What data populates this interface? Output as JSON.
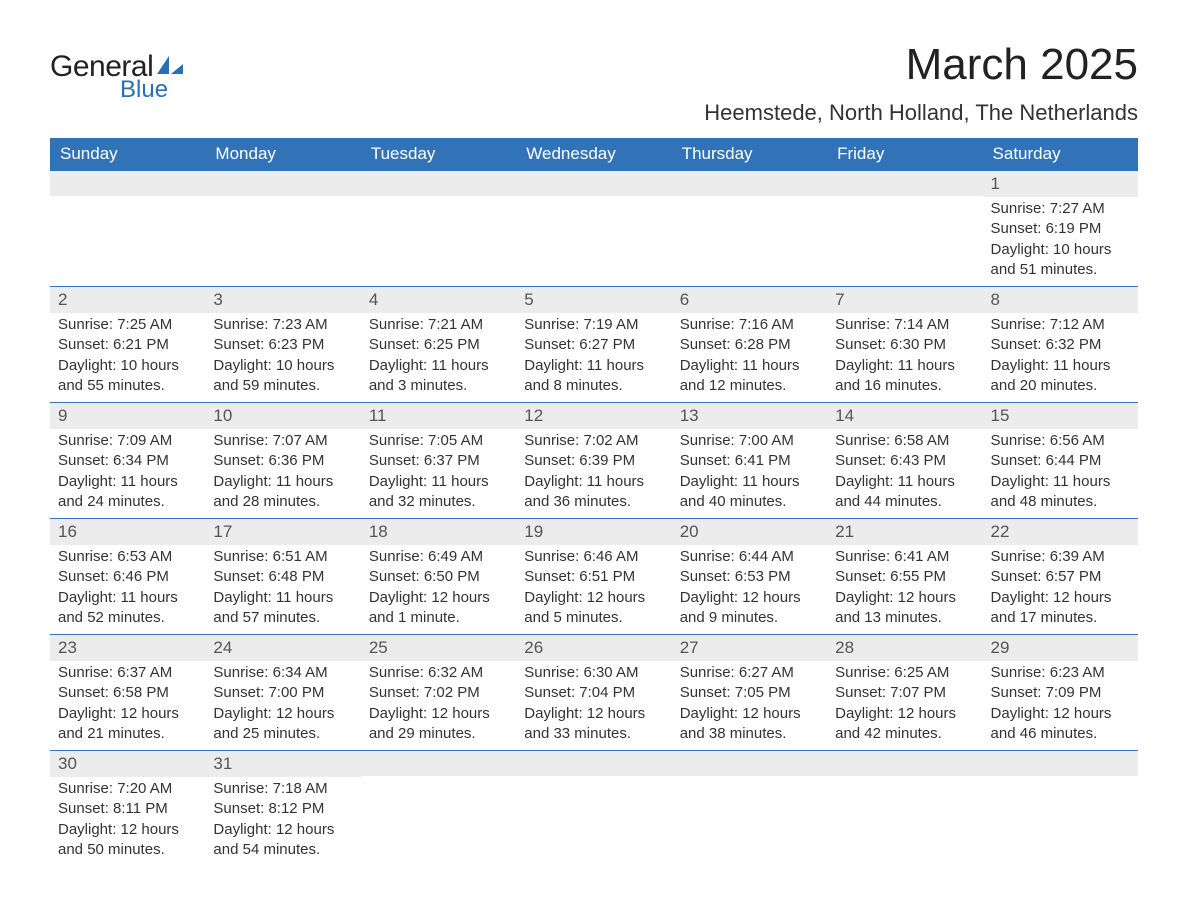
{
  "logo": {
    "word1": "General",
    "word2": "Blue",
    "sail_color": "#2a6fb5",
    "text_color": "#222222"
  },
  "title": "March 2025",
  "location": "Heemstede, North Holland, The Netherlands",
  "colors": {
    "header_bg": "#3173b6",
    "header_text": "#ffffff",
    "daynum_bg": "#ececec",
    "row_divider": "#3173b6",
    "body_text": "#333333"
  },
  "days_of_week": [
    "Sunday",
    "Monday",
    "Tuesday",
    "Wednesday",
    "Thursday",
    "Friday",
    "Saturday"
  ],
  "weeks": [
    [
      null,
      null,
      null,
      null,
      null,
      null,
      {
        "n": "1",
        "sunrise": "Sunrise: 7:27 AM",
        "sunset": "Sunset: 6:19 PM",
        "daylight": "Daylight: 10 hours and 51 minutes."
      }
    ],
    [
      {
        "n": "2",
        "sunrise": "Sunrise: 7:25 AM",
        "sunset": "Sunset: 6:21 PM",
        "daylight": "Daylight: 10 hours and 55 minutes."
      },
      {
        "n": "3",
        "sunrise": "Sunrise: 7:23 AM",
        "sunset": "Sunset: 6:23 PM",
        "daylight": "Daylight: 10 hours and 59 minutes."
      },
      {
        "n": "4",
        "sunrise": "Sunrise: 7:21 AM",
        "sunset": "Sunset: 6:25 PM",
        "daylight": "Daylight: 11 hours and 3 minutes."
      },
      {
        "n": "5",
        "sunrise": "Sunrise: 7:19 AM",
        "sunset": "Sunset: 6:27 PM",
        "daylight": "Daylight: 11 hours and 8 minutes."
      },
      {
        "n": "6",
        "sunrise": "Sunrise: 7:16 AM",
        "sunset": "Sunset: 6:28 PM",
        "daylight": "Daylight: 11 hours and 12 minutes."
      },
      {
        "n": "7",
        "sunrise": "Sunrise: 7:14 AM",
        "sunset": "Sunset: 6:30 PM",
        "daylight": "Daylight: 11 hours and 16 minutes."
      },
      {
        "n": "8",
        "sunrise": "Sunrise: 7:12 AM",
        "sunset": "Sunset: 6:32 PM",
        "daylight": "Daylight: 11 hours and 20 minutes."
      }
    ],
    [
      {
        "n": "9",
        "sunrise": "Sunrise: 7:09 AM",
        "sunset": "Sunset: 6:34 PM",
        "daylight": "Daylight: 11 hours and 24 minutes."
      },
      {
        "n": "10",
        "sunrise": "Sunrise: 7:07 AM",
        "sunset": "Sunset: 6:36 PM",
        "daylight": "Daylight: 11 hours and 28 minutes."
      },
      {
        "n": "11",
        "sunrise": "Sunrise: 7:05 AM",
        "sunset": "Sunset: 6:37 PM",
        "daylight": "Daylight: 11 hours and 32 minutes."
      },
      {
        "n": "12",
        "sunrise": "Sunrise: 7:02 AM",
        "sunset": "Sunset: 6:39 PM",
        "daylight": "Daylight: 11 hours and 36 minutes."
      },
      {
        "n": "13",
        "sunrise": "Sunrise: 7:00 AM",
        "sunset": "Sunset: 6:41 PM",
        "daylight": "Daylight: 11 hours and 40 minutes."
      },
      {
        "n": "14",
        "sunrise": "Sunrise: 6:58 AM",
        "sunset": "Sunset: 6:43 PM",
        "daylight": "Daylight: 11 hours and 44 minutes."
      },
      {
        "n": "15",
        "sunrise": "Sunrise: 6:56 AM",
        "sunset": "Sunset: 6:44 PM",
        "daylight": "Daylight: 11 hours and 48 minutes."
      }
    ],
    [
      {
        "n": "16",
        "sunrise": "Sunrise: 6:53 AM",
        "sunset": "Sunset: 6:46 PM",
        "daylight": "Daylight: 11 hours and 52 minutes."
      },
      {
        "n": "17",
        "sunrise": "Sunrise: 6:51 AM",
        "sunset": "Sunset: 6:48 PM",
        "daylight": "Daylight: 11 hours and 57 minutes."
      },
      {
        "n": "18",
        "sunrise": "Sunrise: 6:49 AM",
        "sunset": "Sunset: 6:50 PM",
        "daylight": "Daylight: 12 hours and 1 minute."
      },
      {
        "n": "19",
        "sunrise": "Sunrise: 6:46 AM",
        "sunset": "Sunset: 6:51 PM",
        "daylight": "Daylight: 12 hours and 5 minutes."
      },
      {
        "n": "20",
        "sunrise": "Sunrise: 6:44 AM",
        "sunset": "Sunset: 6:53 PM",
        "daylight": "Daylight: 12 hours and 9 minutes."
      },
      {
        "n": "21",
        "sunrise": "Sunrise: 6:41 AM",
        "sunset": "Sunset: 6:55 PM",
        "daylight": "Daylight: 12 hours and 13 minutes."
      },
      {
        "n": "22",
        "sunrise": "Sunrise: 6:39 AM",
        "sunset": "Sunset: 6:57 PM",
        "daylight": "Daylight: 12 hours and 17 minutes."
      }
    ],
    [
      {
        "n": "23",
        "sunrise": "Sunrise: 6:37 AM",
        "sunset": "Sunset: 6:58 PM",
        "daylight": "Daylight: 12 hours and 21 minutes."
      },
      {
        "n": "24",
        "sunrise": "Sunrise: 6:34 AM",
        "sunset": "Sunset: 7:00 PM",
        "daylight": "Daylight: 12 hours and 25 minutes."
      },
      {
        "n": "25",
        "sunrise": "Sunrise: 6:32 AM",
        "sunset": "Sunset: 7:02 PM",
        "daylight": "Daylight: 12 hours and 29 minutes."
      },
      {
        "n": "26",
        "sunrise": "Sunrise: 6:30 AM",
        "sunset": "Sunset: 7:04 PM",
        "daylight": "Daylight: 12 hours and 33 minutes."
      },
      {
        "n": "27",
        "sunrise": "Sunrise: 6:27 AM",
        "sunset": "Sunset: 7:05 PM",
        "daylight": "Daylight: 12 hours and 38 minutes."
      },
      {
        "n": "28",
        "sunrise": "Sunrise: 6:25 AM",
        "sunset": "Sunset: 7:07 PM",
        "daylight": "Daylight: 12 hours and 42 minutes."
      },
      {
        "n": "29",
        "sunrise": "Sunrise: 6:23 AM",
        "sunset": "Sunset: 7:09 PM",
        "daylight": "Daylight: 12 hours and 46 minutes."
      }
    ],
    [
      {
        "n": "30",
        "sunrise": "Sunrise: 7:20 AM",
        "sunset": "Sunset: 8:11 PM",
        "daylight": "Daylight: 12 hours and 50 minutes."
      },
      {
        "n": "31",
        "sunrise": "Sunrise: 7:18 AM",
        "sunset": "Sunset: 8:12 PM",
        "daylight": "Daylight: 12 hours and 54 minutes."
      },
      null,
      null,
      null,
      null,
      null
    ]
  ]
}
